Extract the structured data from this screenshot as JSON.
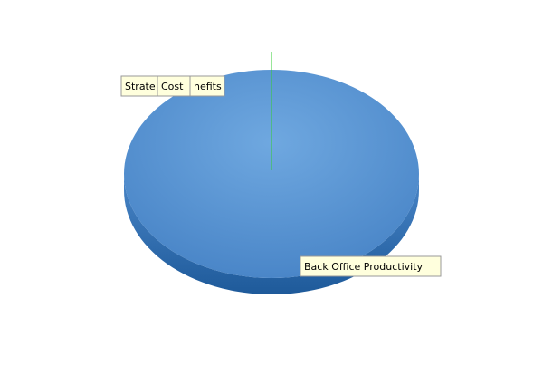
{
  "chart_data": {
    "type": "pie",
    "title": "",
    "slices": [
      {
        "label": "Back Office Productivity",
        "value": 100
      },
      {
        "label": "Strategic Benefits",
        "value": 0
      },
      {
        "label": "Cost",
        "value": 0
      },
      {
        "label": "Benefits",
        "value": 0
      }
    ],
    "visible_labels": [
      "Back Office Productivity",
      "Strate",
      "Cost",
      "nefits"
    ],
    "legend": "none",
    "style": "3d",
    "colors": {
      "slice_top": "#4a86c8",
      "slice_highlight": "#6fa8e0",
      "slice_side": "#1e5a9a",
      "leader_line": "#33cc33",
      "label_bg": "#ffffdd",
      "label_border": "#999999"
    }
  }
}
